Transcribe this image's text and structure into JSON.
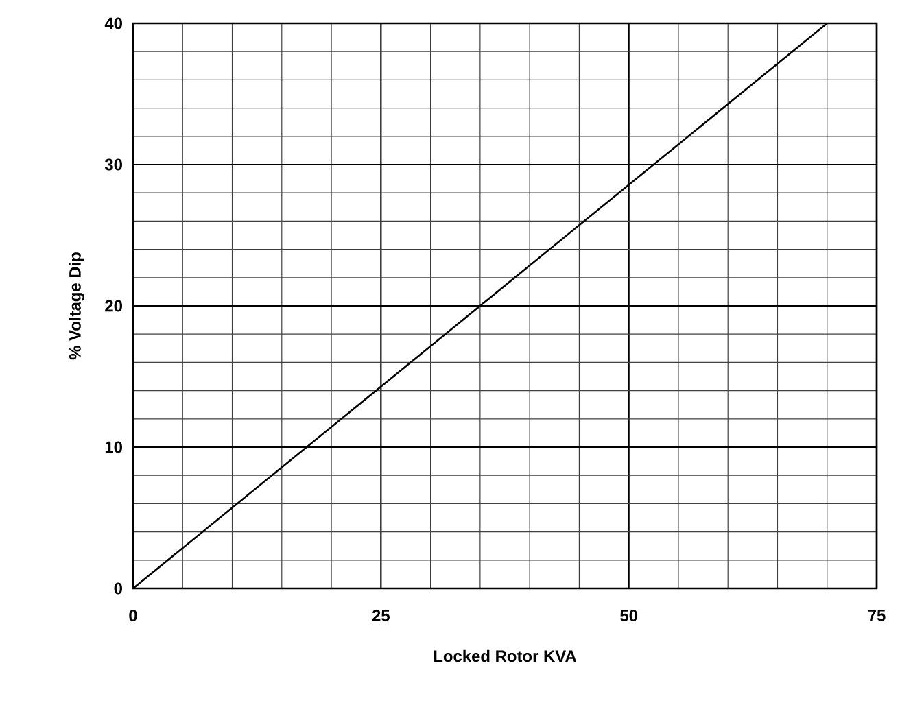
{
  "chart_data": {
    "type": "line",
    "xlabel": "Locked Rotor KVA",
    "ylabel": "% Voltage Dip",
    "x": [
      0,
      70
    ],
    "series": [
      {
        "color": "#000000",
        "values": [
          0,
          40
        ]
      }
    ],
    "xlim": [
      0,
      75
    ],
    "ylim": [
      0,
      40
    ],
    "xticks": [
      0,
      {
        "value": 5,
        "label": null
      },
      {
        "value": 10,
        "label": null
      },
      {
        "value": 15,
        "label": null
      },
      {
        "value": 20,
        "label": null
      },
      25,
      {
        "value": 30,
        "label": null
      },
      {
        "value": 35,
        "label": null
      },
      {
        "value": 40,
        "label": null
      },
      {
        "value": 45,
        "label": null
      },
      50,
      {
        "value": 55,
        "label": null
      },
      {
        "value": 60,
        "label": null
      },
      {
        "value": 65,
        "label": null
      },
      {
        "value": 70,
        "label": null
      },
      75
    ],
    "yticks": [
      0,
      {
        "value": 2,
        "label": null
      },
      {
        "value": 4,
        "label": null
      },
      {
        "value": 6,
        "label": null
      },
      {
        "value": 8,
        "label": null
      },
      10,
      {
        "value": 12,
        "label": null
      },
      {
        "value": 14,
        "label": null
      },
      {
        "value": 16,
        "label": null
      },
      {
        "value": 18,
        "label": null
      },
      20,
      {
        "value": 22,
        "label": null
      },
      {
        "value": 24,
        "label": null
      },
      {
        "value": 26,
        "label": null
      },
      {
        "value": 28,
        "label": null
      },
      30,
      {
        "value": 32,
        "label": null
      },
      {
        "value": 34,
        "label": null
      },
      {
        "value": 36,
        "label": null
      },
      {
        "value": 38,
        "label": null
      },
      40
    ],
    "grid": true,
    "marker": "none",
    "line_style": "solid"
  }
}
